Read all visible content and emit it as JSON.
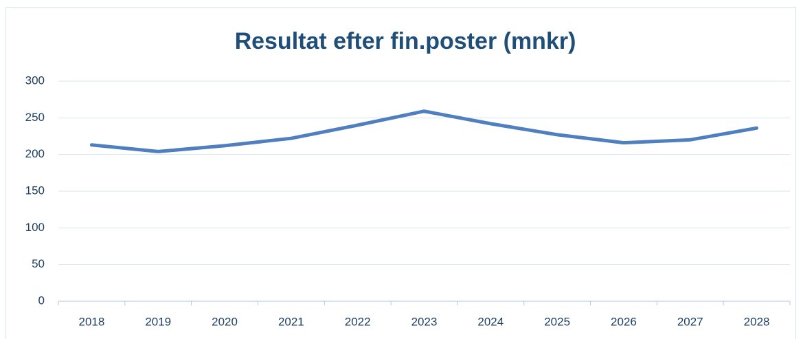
{
  "chart_data": {
    "type": "line",
    "title": "Resultat efter fin.poster (mnkr)",
    "categories": [
      "2018",
      "2019",
      "2020",
      "2021",
      "2022",
      "2023",
      "2024",
      "2025",
      "2026",
      "2027",
      "2028"
    ],
    "values": [
      213,
      204,
      212,
      222,
      240,
      259,
      242,
      227,
      216,
      220,
      236
    ],
    "color": "#4f7fbf",
    "ylim": [
      0,
      300
    ],
    "yticks": [
      0,
      50,
      100,
      150,
      200,
      250,
      300
    ],
    "grid": true
  }
}
